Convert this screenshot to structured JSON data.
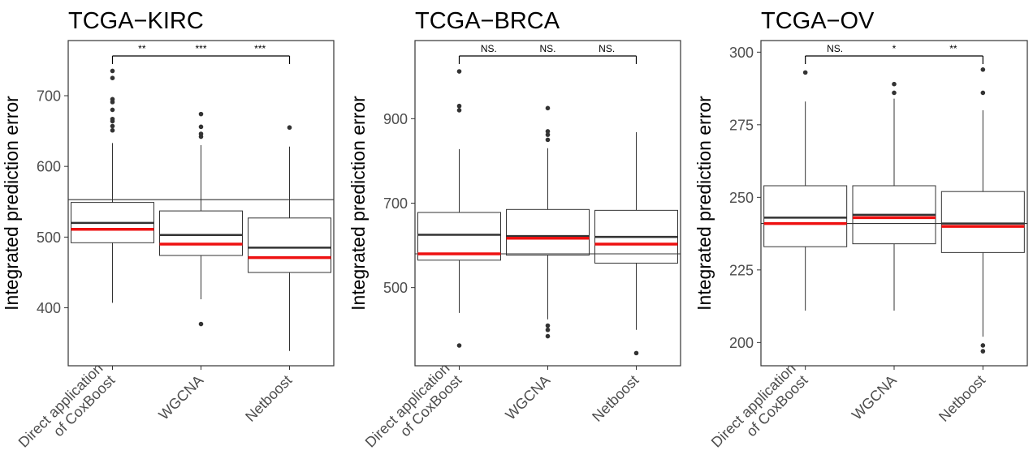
{
  "chart_data": [
    {
      "type": "boxplot",
      "title": "TCGA−KIRC",
      "ylabel": "Integrated prediction error",
      "xlabel": "",
      "ylim": [
        318,
        778
      ],
      "yticks": [
        400,
        500,
        600,
        700
      ],
      "ytick_labels": [
        "400",
        "500",
        "600",
        "700"
      ],
      "categories": [
        "Direct application\nof CoxBoost",
        "WGCNA",
        "Netboost"
      ],
      "hline": 553,
      "boxes": [
        {
          "category": "Direct application\nof CoxBoost",
          "whisker_low": 407,
          "q1": 492,
          "median": 520,
          "q3": 549,
          "whisker_high": 633,
          "mean": 511,
          "outliers": [
            651,
            657,
            664,
            667,
            680,
            691,
            695,
            725,
            735
          ]
        },
        {
          "category": "WGCNA",
          "whisker_low": 412,
          "q1": 474,
          "median": 503,
          "q3": 537,
          "whisker_high": 630,
          "mean": 490,
          "outliers": [
            377,
            642,
            646,
            656,
            674
          ]
        },
        {
          "category": "Netboost",
          "whisker_low": 339,
          "q1": 450,
          "median": 485,
          "q3": 527,
          "whisker_high": 628,
          "mean": 471,
          "outliers": [
            655
          ]
        }
      ],
      "significance": {
        "from": 0,
        "to": 2,
        "labels": [
          "**",
          "***",
          "***"
        ]
      }
    },
    {
      "type": "boxplot",
      "title": "TCGA−BRCA",
      "ylabel": "Integrated prediction error",
      "xlabel": "",
      "ylim": [
        315,
        1085
      ],
      "yticks": [
        500,
        700,
        900
      ],
      "ytick_labels": [
        "500",
        "700",
        "900"
      ],
      "categories": [
        "Direct application\nof CoxBoost",
        "WGCNA",
        "Netboost"
      ],
      "hline": 580,
      "boxes": [
        {
          "category": "Direct application\nof CoxBoost",
          "whisker_low": 440,
          "q1": 565,
          "median": 625,
          "q3": 678,
          "whisker_high": 828,
          "mean": 580,
          "outliers": [
            363,
            920,
            930,
            1012
          ]
        },
        {
          "category": "WGCNA",
          "whisker_low": 425,
          "q1": 577,
          "median": 622,
          "q3": 685,
          "whisker_high": 830,
          "mean": 617,
          "outliers": [
            385,
            400,
            410,
            850,
            862,
            870,
            925
          ]
        },
        {
          "category": "Netboost",
          "whisker_low": 400,
          "q1": 558,
          "median": 620,
          "q3": 683,
          "whisker_high": 868,
          "mean": 603,
          "outliers": [
            345
          ]
        }
      ],
      "significance": {
        "from": 0,
        "to": 2,
        "labels": [
          "NS.",
          "NS.",
          "NS."
        ]
      }
    },
    {
      "type": "boxplot",
      "title": "TCGA−OV",
      "ylabel": "Integrated prediction error",
      "xlabel": "",
      "ylim": [
        192,
        304
      ],
      "yticks": [
        200,
        225,
        250,
        275,
        300
      ],
      "ytick_labels": [
        "200",
        "225",
        "250",
        "275",
        "300"
      ],
      "categories": [
        "Direct application\nof CoxBoost",
        "WGCNA",
        "Netboost"
      ],
      "hline": 241,
      "boxes": [
        {
          "category": "Direct application\nof CoxBoost",
          "whisker_low": 211,
          "q1": 233,
          "median": 243,
          "q3": 254,
          "whisker_high": 283,
          "mean": 241,
          "outliers": [
            293
          ]
        },
        {
          "category": "WGCNA",
          "whisker_low": 211,
          "q1": 234,
          "median": 244,
          "q3": 254,
          "whisker_high": 284,
          "mean": 243,
          "outliers": [
            286,
            289
          ]
        },
        {
          "category": "Netboost",
          "whisker_low": 202,
          "q1": 231,
          "median": 241,
          "q3": 252,
          "whisker_high": 280,
          "mean": 240,
          "outliers": [
            197,
            199,
            286,
            294
          ]
        }
      ],
      "significance": {
        "from": 0,
        "to": 2,
        "labels": [
          "NS.",
          "*",
          "**"
        ]
      }
    }
  ],
  "colors": {
    "mean_line": "#ee1111",
    "median_line": "#333333",
    "box_stroke": "#333333",
    "outlier": "#333333",
    "axis": "#333333",
    "tick_label": "#4d4d4d",
    "text": "#000000"
  }
}
